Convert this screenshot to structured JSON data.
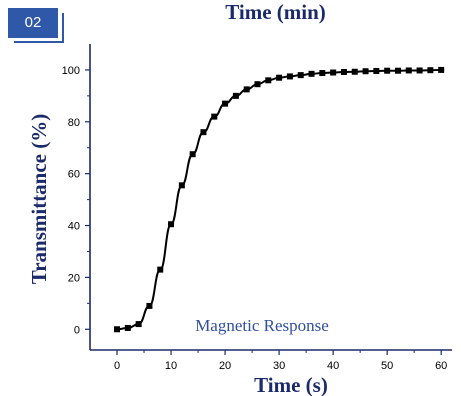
{
  "badge": {
    "label": "02"
  },
  "top_title": "Time (min)",
  "chart_data": {
    "type": "line",
    "xlabel": "Time (s)",
    "ylabel": "Transmittance (%)",
    "xlim": [
      -5,
      62
    ],
    "ylim": [
      -8,
      110
    ],
    "xticks": [
      0,
      10,
      20,
      30,
      40,
      50,
      60
    ],
    "yticks": [
      0,
      20,
      40,
      60,
      80,
      100
    ],
    "annotation": "Magnetic Response",
    "line_color": "#000000",
    "label_color": "#1b2a6b",
    "series": [
      {
        "marker": "square",
        "x": [
          0,
          2,
          4,
          6,
          8,
          10,
          12,
          14,
          16,
          18,
          20,
          22,
          24,
          26,
          28,
          30,
          32,
          34,
          36,
          38,
          40,
          42,
          44,
          46,
          48,
          50,
          52,
          54,
          56,
          58,
          60
        ],
        "y": [
          0,
          0.5,
          2,
          9,
          23,
          40.5,
          55.5,
          67.5,
          76,
          82,
          87,
          90,
          92.5,
          94.5,
          96,
          97,
          97.5,
          98,
          98.5,
          98.8,
          99,
          99.2,
          99.3,
          99.5,
          99.6,
          99.7,
          99.7,
          99.8,
          99.8,
          99.9,
          100
        ]
      }
    ]
  }
}
